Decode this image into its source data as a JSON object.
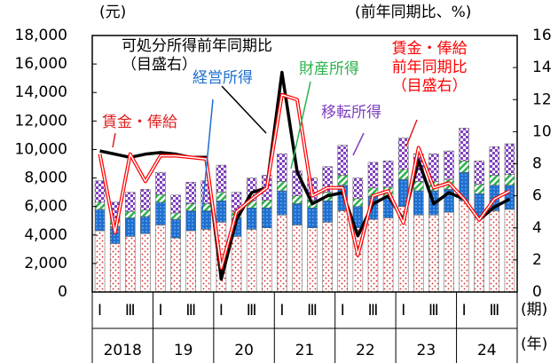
{
  "chart_data": {
    "type": "bar",
    "units_left": "(元)",
    "units_right": "(前年同期比、%)",
    "x_unit": "(期)",
    "year_unit": "(年)",
    "categories": [
      "Ⅰ",
      null,
      "Ⅲ",
      null,
      "Ⅰ",
      null,
      "Ⅲ",
      null,
      "Ⅰ",
      null,
      "Ⅲ",
      null,
      "Ⅰ",
      null,
      "Ⅲ",
      null,
      "Ⅰ",
      null,
      "Ⅲ",
      null,
      "Ⅰ",
      null,
      "Ⅲ",
      null,
      "Ⅰ",
      null,
      "Ⅲ",
      null
    ],
    "years": [
      "2018",
      "19",
      "20",
      "21",
      "22",
      "23",
      "24"
    ],
    "series": [
      {
        "name": "賃金・俸給",
        "color": "#e02020",
        "values": [
          4300,
          3400,
          3900,
          4100,
          4700,
          3800,
          4300,
          4400,
          4900,
          3900,
          4400,
          4500,
          5400,
          4700,
          4500,
          4900,
          5700,
          4500,
          5100,
          5200,
          6000,
          5400,
          5400,
          5600,
          6400,
          5200,
          5700,
          5800
        ]
      },
      {
        "name": "経営所得",
        "color": "#1f6fd0",
        "values": [
          1500,
          1200,
          1300,
          1200,
          1600,
          1300,
          1400,
          1300,
          1500,
          1300,
          1500,
          1400,
          1700,
          1500,
          1400,
          1500,
          1800,
          1500,
          1600,
          1500,
          1900,
          1700,
          1700,
          1600,
          2000,
          1700,
          1800,
          1700
        ]
      },
      {
        "name": "財産所得",
        "color": "#2bb24c",
        "values": [
          500,
          400,
          450,
          450,
          550,
          450,
          500,
          500,
          600,
          450,
          500,
          550,
          650,
          550,
          550,
          600,
          700,
          550,
          600,
          650,
          700,
          650,
          650,
          700,
          800,
          650,
          700,
          750
        ]
      },
      {
        "name": "移転所得",
        "color": "#8040c0",
        "values": [
          1500,
          1300,
          1350,
          1450,
          1550,
          1250,
          1500,
          1600,
          1900,
          1350,
          1600,
          1750,
          1950,
          1750,
          1550,
          1800,
          2100,
          1450,
          1800,
          1850,
          2200,
          1950,
          1950,
          2000,
          2300,
          1650,
          2000,
          2150
        ]
      },
      {
        "name": "可処分所得前年同期比（目盛右）",
        "type": "line",
        "axis": "y2",
        "color": "#000000",
        "values": [
          8.8,
          8.6,
          8.4,
          8.6,
          8.7,
          8.6,
          8.4,
          8.4,
          0.8,
          4.5,
          6.2,
          6.5,
          13.7,
          7.5,
          5.5,
          6.0,
          6.2,
          3.5,
          5.5,
          6.0,
          4.5,
          8.2,
          5.5,
          6.2,
          5.8,
          4.5,
          5.3,
          5.8
        ]
      },
      {
        "name": "賃金・俸給前年同期比（目盛右）",
        "type": "line",
        "axis": "y2",
        "color": "#ff0000",
        "values": [
          8.6,
          3.7,
          8.6,
          6.9,
          8.5,
          8.5,
          8.4,
          8.3,
          1.5,
          5.0,
          5.8,
          6.5,
          12.3,
          12.0,
          6.0,
          6.5,
          6.5,
          2.3,
          6.0,
          6.3,
          4.3,
          9.0,
          6.5,
          6.8,
          5.8,
          4.5,
          5.8,
          6.3
        ]
      }
    ],
    "ylim": [
      0,
      18000
    ],
    "yticks": [
      0,
      {
        "value": 2000,
        "label": "2,000"
      },
      {
        "value": 4000,
        "label": "4,000"
      },
      {
        "value": 6000,
        "label": "6,000"
      },
      {
        "value": 8000,
        "label": "8,000"
      },
      {
        "value": 10000,
        "label": "10,000"
      },
      {
        "value": 12000,
        "label": "12,000"
      },
      {
        "value": 14000,
        "label": "14,000"
      },
      {
        "value": 16000,
        "label": "16,000"
      },
      {
        "value": 18000,
        "label": "18,000"
      }
    ],
    "y2lim": [
      0,
      16
    ],
    "y2ticks": [
      0,
      2,
      4,
      6,
      8,
      10,
      12,
      14,
      16
    ]
  }
}
